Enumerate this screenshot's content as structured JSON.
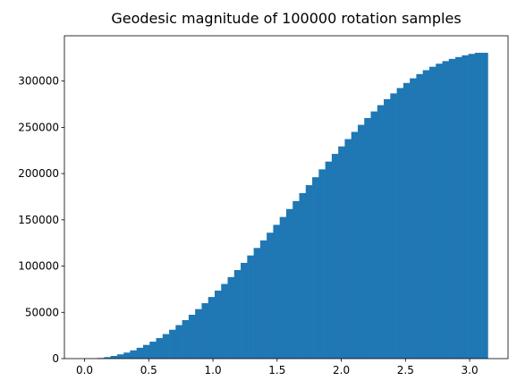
{
  "chart_data": {
    "type": "bar",
    "title": "Geodesic magnitude of 100000 rotation samples",
    "xlabel": "",
    "ylabel": "",
    "bar_color": "#1f77b4",
    "grid": false,
    "xlim": [
      -0.157,
      3.299
    ],
    "ylim": [
      0,
      349000
    ],
    "xticks": [
      0.0,
      0.5,
      1.0,
      1.5,
      2.0,
      2.5,
      3.0
    ],
    "xtick_labels": [
      "0.0",
      "0.5",
      "1.0",
      "1.5",
      "2.0",
      "2.5",
      "3.0"
    ],
    "yticks": [
      0,
      50000,
      100000,
      150000,
      200000,
      250000,
      300000
    ],
    "ytick_labels": [
      "0",
      "50000",
      "100000",
      "150000",
      "200000",
      "250000",
      "300000"
    ],
    "bin_start": 0.0,
    "bin_end": 3.1416,
    "values": [
      0,
      200,
      700,
      1600,
      2900,
      4600,
      6500,
      8900,
      11700,
      14800,
      18300,
      22200,
      26500,
      31200,
      36200,
      41600,
      47400,
      53500,
      59900,
      66600,
      73500,
      80700,
      88100,
      95700,
      103500,
      111500,
      119600,
      127800,
      136100,
      144600,
      153100,
      161700,
      170300,
      178900,
      187500,
      196100,
      204600,
      213000,
      221300,
      229400,
      237300,
      245100,
      252700,
      260100,
      267200,
      274000,
      280500,
      286700,
      292500,
      298000,
      303000,
      307600,
      311800,
      315500,
      318800,
      321600,
      324000,
      326000,
      327900,
      329400,
      330600,
      330600
    ]
  }
}
